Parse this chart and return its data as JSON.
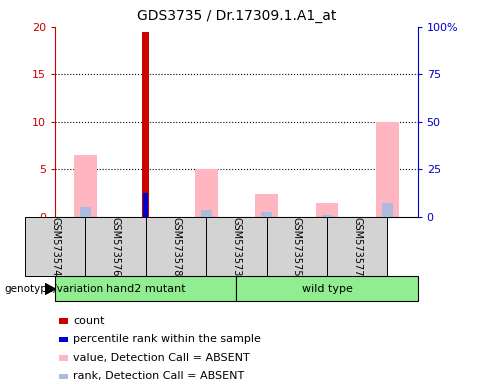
{
  "title": "GDS3735 / Dr.17309.1.A1_at",
  "samples": [
    "GSM573574",
    "GSM573576",
    "GSM573578",
    "GSM573573",
    "GSM573575",
    "GSM573577"
  ],
  "count_values": [
    0,
    19.5,
    0,
    0,
    0,
    0
  ],
  "percentile_values": [
    0,
    2.5,
    0,
    0,
    0,
    0
  ],
  "value_absent": [
    6.5,
    0,
    5.0,
    2.4,
    1.5,
    10.0
  ],
  "rank_absent": [
    1.0,
    0,
    0.7,
    0.5,
    0.2,
    1.5
  ],
  "ylim_left": [
    0,
    20
  ],
  "ylim_right": [
    0,
    100
  ],
  "yticks_left": [
    0,
    5,
    10,
    15,
    20
  ],
  "ytick_labels_left": [
    "0",
    "5",
    "10",
    "15",
    "20"
  ],
  "yticks_right": [
    0,
    25,
    50,
    75,
    100
  ],
  "ytick_labels_right": [
    "0",
    "25",
    "50",
    "75",
    "100%"
  ],
  "colors": {
    "count": "#CC0000",
    "percentile": "#0000CC",
    "value_absent": "#FFB6C1",
    "rank_absent": "#AABBDD",
    "group_bg": "#90EE90",
    "sample_bg": "#D3D3D3"
  },
  "legend_items": [
    {
      "label": "count",
      "color": "#CC0000"
    },
    {
      "label": "percentile rank within the sample",
      "color": "#0000CC"
    },
    {
      "label": "value, Detection Call = ABSENT",
      "color": "#FFB6C1"
    },
    {
      "label": "rank, Detection Call = ABSENT",
      "color": "#AABBDD"
    }
  ],
  "genotype_label": "genotype/variation",
  "group1_label": "hand2 mutant",
  "group2_label": "wild type"
}
